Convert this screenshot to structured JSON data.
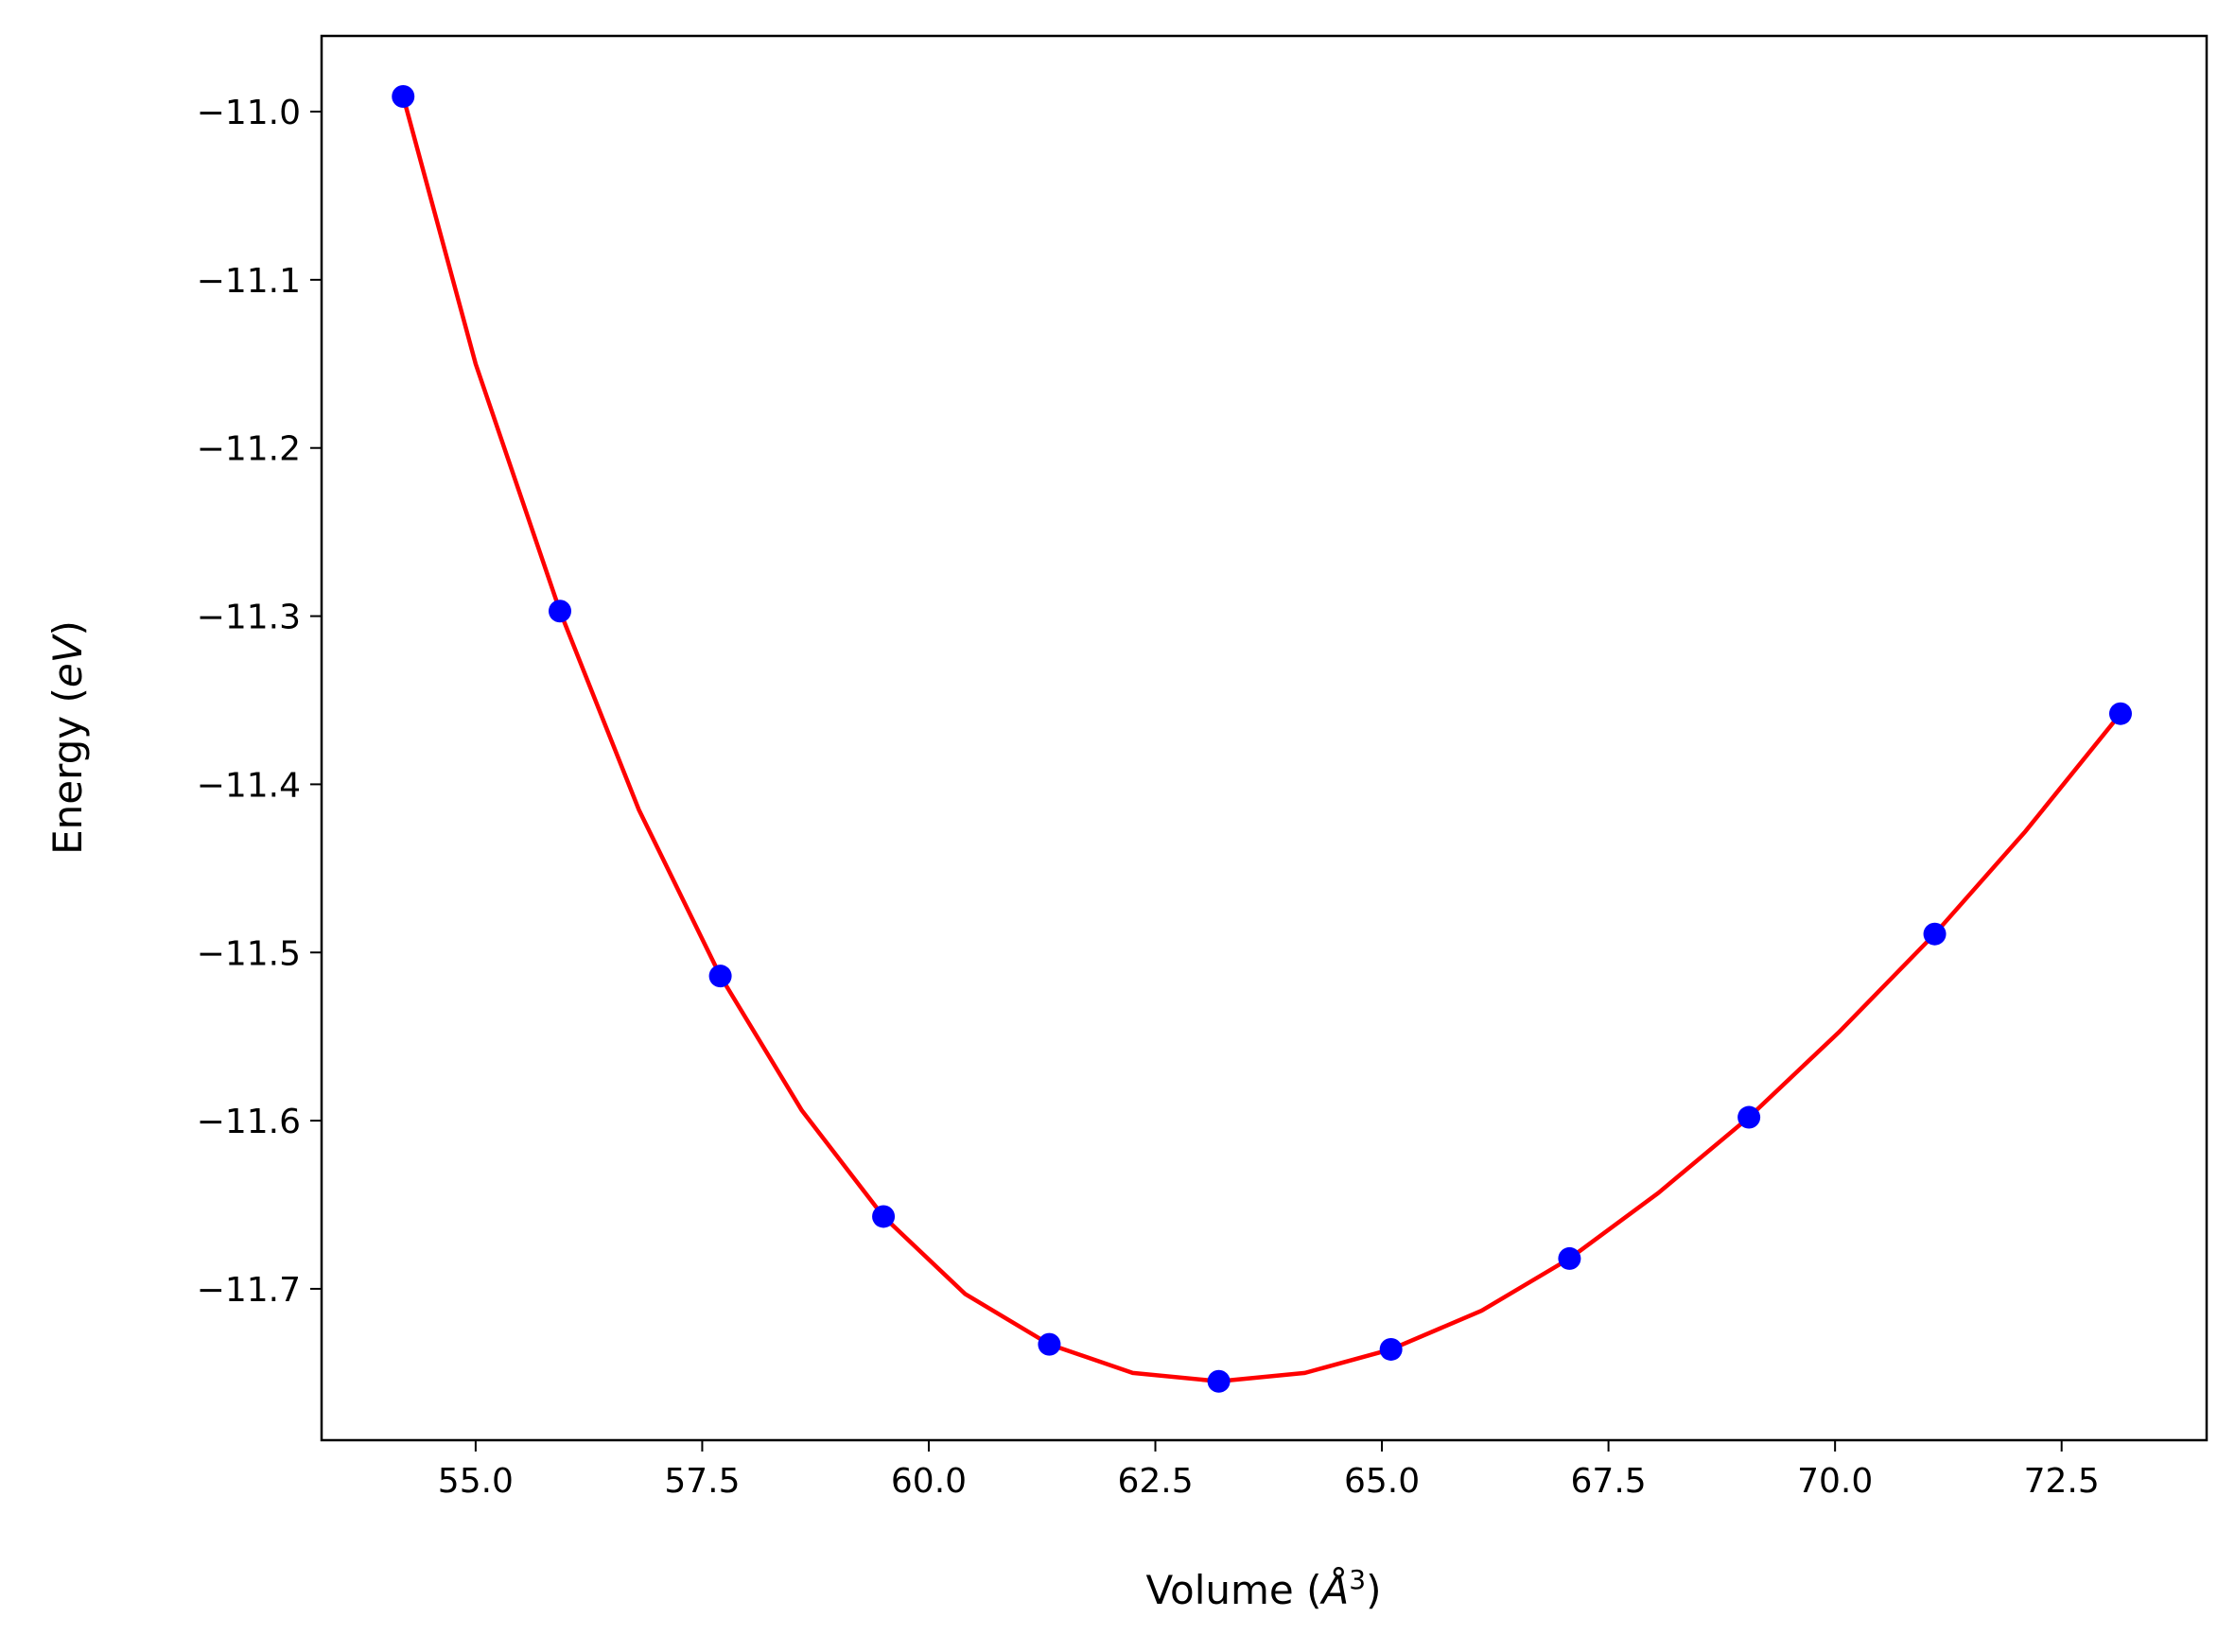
{
  "chart_data": {
    "type": "line",
    "xlabel_parts": [
      "Volume (",
      "Å",
      "3",
      ")"
    ],
    "ylabel_parts": [
      "Energy (",
      "eV",
      ")"
    ],
    "xlim": [
      53.3,
      74.1
    ],
    "ylim": [
      -11.79,
      -10.955
    ],
    "x_ticks": [
      55.0,
      57.5,
      60.0,
      62.5,
      65.0,
      67.5,
      70.0,
      72.5
    ],
    "x_tick_labels": [
      "55.0",
      "57.5",
      "60.0",
      "62.5",
      "65.0",
      "67.5",
      "70.0",
      "72.5"
    ],
    "y_ticks": [
      -11.0,
      -11.1,
      -11.2,
      -11.3,
      -11.4,
      -11.5,
      -11.6,
      -11.7
    ],
    "y_tick_labels": [
      "−11.0",
      "−11.1",
      "−11.2",
      "−11.3",
      "−11.4",
      "−11.5",
      "−11.6",
      "−11.7"
    ],
    "grid": false,
    "legend": false,
    "series": [
      {
        "kind": "scatter",
        "color": "#0000ff",
        "x": [
          54.2,
          55.93,
          57.7,
          59.5,
          61.33,
          63.2,
          65.1,
          67.07,
          69.05,
          71.1,
          73.15
        ],
        "y": [
          -10.991,
          -11.297,
          -11.514,
          -11.657,
          -11.733,
          -11.755,
          -11.736,
          -11.682,
          -11.598,
          -11.489,
          -11.358
        ]
      },
      {
        "kind": "line",
        "color": "#ff0000",
        "x": [
          54.2,
          55.0,
          55.93,
          56.8,
          57.7,
          58.6,
          59.5,
          60.4,
          61.33,
          62.25,
          63.2,
          64.15,
          65.1,
          66.1,
          67.07,
          68.05,
          69.05,
          70.05,
          71.1,
          72.1,
          73.15
        ],
        "y": [
          -10.991,
          -11.15,
          -11.297,
          -11.415,
          -11.514,
          -11.594,
          -11.657,
          -11.703,
          -11.733,
          -11.75,
          -11.755,
          -11.75,
          -11.736,
          -11.713,
          -11.682,
          -11.643,
          -11.598,
          -11.547,
          -11.489,
          -11.428,
          -11.358
        ]
      }
    ]
  }
}
